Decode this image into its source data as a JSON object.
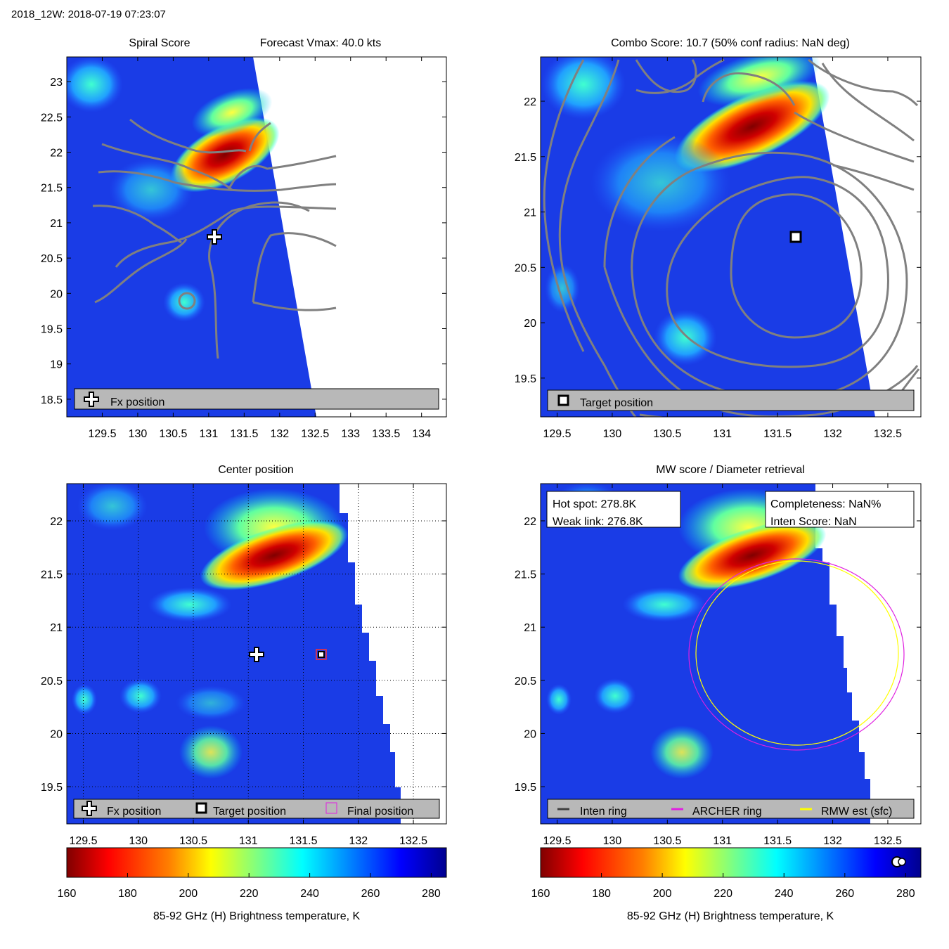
{
  "figure_title": "2018_12W: 2018-07-19 07:23:07",
  "colormap": {
    "stops": [
      "#800000",
      "#ff0000",
      "#ff8000",
      "#ffff00",
      "#80ff80",
      "#00ffff",
      "#0080ff",
      "#0000ff",
      "#00008f"
    ],
    "bg_blue": "#1a3ce6",
    "ring_gray": "#808080",
    "panel_gray": "#b8b8b8"
  },
  "panels": {
    "spiral": {
      "title_left": "Spiral Score",
      "title_right": "Forecast Vmax: 40.0 kts",
      "legend": {
        "fx_label": "Fx position"
      }
    },
    "combo": {
      "title": "Combo Score: 10.7  (50% conf radius: NaN deg)",
      "legend": {
        "target_label": "Target position"
      }
    },
    "center": {
      "title": "Center position",
      "legend": {
        "fx_label": "Fx position",
        "target_label": "Target position",
        "final_label": "Final position"
      }
    },
    "mw": {
      "title": "MW score / Diameter retrieval",
      "box_left": {
        "line1": "Hot spot: 278.8K",
        "line2": "Weak link: 276.8K"
      },
      "box_right": {
        "line1": "Completeness: NaN%",
        "line2": "Inten Score: NaN"
      },
      "legend": {
        "inten_label": "Inten ring",
        "archer_label": "ARCHER ring",
        "rmw_label": "RMW est (sfc)"
      }
    }
  },
  "colorbar": {
    "label": "85-92 GHz (H) Brightness temperature, K",
    "ticks": [
      "160",
      "180",
      "200",
      "220",
      "240",
      "260",
      "280"
    ]
  },
  "chart_data": [
    {
      "type": "heatmap",
      "name": "Spiral Score",
      "xlim": [
        129.0,
        134.35
      ],
      "ylim": [
        18.25,
        23.35
      ],
      "xticks": [
        "129.5",
        "130",
        "130.5",
        "131",
        "131.5",
        "132",
        "132.5",
        "133",
        "133.5",
        "134"
      ],
      "yticks": [
        "18.5",
        "19",
        "19.5",
        "20",
        "20.5",
        "21",
        "21.5",
        "22",
        "22.5",
        "23"
      ],
      "fx_position": [
        131.1,
        20.75
      ]
    },
    {
      "type": "heatmap",
      "name": "Combo Score",
      "xlim": [
        129.35,
        132.8
      ],
      "ylim": [
        19.15,
        22.4
      ],
      "xticks": [
        "129.5",
        "130",
        "130.5",
        "131",
        "131.5",
        "132",
        "132.5"
      ],
      "yticks": [
        "19.5",
        "20",
        "20.5",
        "21",
        "21.5",
        "22"
      ],
      "target_position": [
        131.7,
        20.75
      ]
    },
    {
      "type": "heatmap",
      "name": "Center position",
      "xlim": [
        129.35,
        132.8
      ],
      "ylim": [
        19.15,
        22.35
      ],
      "xticks": [
        "129.5",
        "130",
        "130.5",
        "131",
        "131.5",
        "132",
        "132.5"
      ],
      "yticks": [
        "19.5",
        "20",
        "20.5",
        "21",
        "21.5",
        "22"
      ],
      "fx_position": [
        131.1,
        20.75
      ],
      "target_position": [
        131.7,
        20.75
      ]
    },
    {
      "type": "heatmap",
      "name": "MW score / Diameter retrieval",
      "xlim": [
        129.35,
        132.8
      ],
      "ylim": [
        19.15,
        22.35
      ],
      "xticks": [
        "129.5",
        "130",
        "130.5",
        "131",
        "131.5",
        "132",
        "132.5"
      ],
      "yticks": [
        "19.5",
        "20",
        "20.5",
        "21",
        "21.5",
        "22"
      ],
      "archer_ring": {
        "center": [
          131.7,
          20.75
        ],
        "radius_deg": 0.9
      },
      "rmw_ring": {
        "center": [
          131.72,
          20.77
        ],
        "radius_deg": 0.87
      }
    }
  ]
}
